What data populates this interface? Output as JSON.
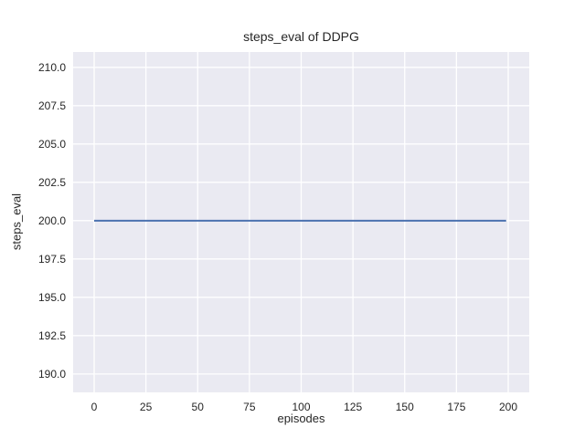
{
  "chart_data": {
    "type": "line",
    "title": "steps_eval of DDPG",
    "xlabel": "episodes",
    "ylabel": "steps_eval",
    "x_ticks": [
      0,
      25,
      50,
      75,
      100,
      125,
      150,
      175,
      200
    ],
    "x_tick_labels": [
      "0",
      "25",
      "50",
      "75",
      "100",
      "125",
      "150",
      "175",
      "200"
    ],
    "y_ticks": [
      190.0,
      192.5,
      195.0,
      197.5,
      200.0,
      202.5,
      205.0,
      207.5,
      210.0
    ],
    "y_tick_labels": [
      "190.0",
      "192.5",
      "195.0",
      "197.5",
      "200.0",
      "202.5",
      "205.0",
      "207.5",
      "210.0"
    ],
    "xlim": [
      -10.15,
      210.15
    ],
    "ylim": [
      188.8,
      211.0
    ],
    "grid": true,
    "legend": "none",
    "series": [
      {
        "name": "DDPG steps_eval",
        "x": [
          0,
          199
        ],
        "y": [
          200.0,
          200.0
        ],
        "color": "#4c72b0",
        "line_width": 2
      }
    ],
    "colors": {
      "plot_background": "#eaeaf2",
      "grid_line": "#ffffff",
      "figure_background": "#ffffff",
      "text": "#262626"
    }
  }
}
